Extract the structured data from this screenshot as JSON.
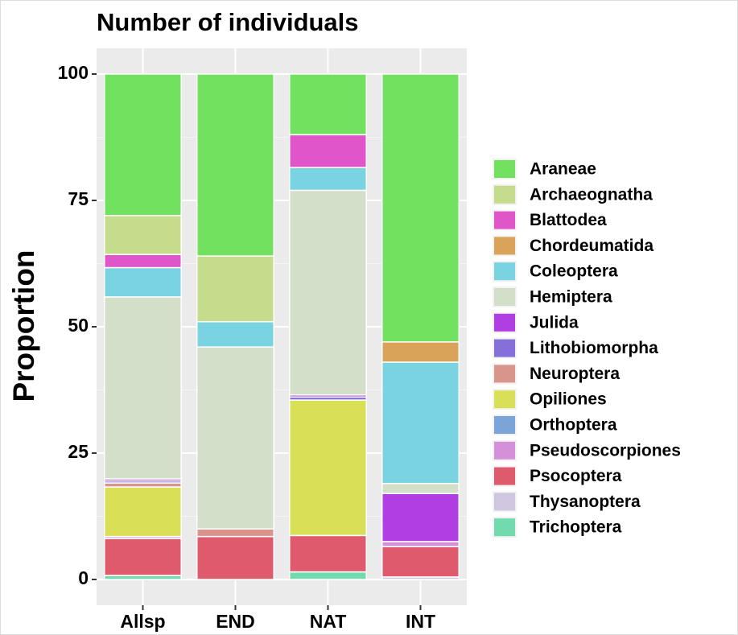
{
  "chart_data": {
    "type": "stacked_bar",
    "title": "Number of individuals",
    "y_label": "Proportion",
    "categories": [
      "Allsp",
      "END",
      "NAT",
      "INT"
    ],
    "ylim": [
      0,
      100
    ],
    "yticks": [
      0,
      25,
      50,
      75,
      100
    ],
    "grid": true,
    "legend_position": "right",
    "series": [
      {
        "name": "Araneae",
        "color": "#72e160",
        "values": [
          28,
          36,
          12,
          53
        ]
      },
      {
        "name": "Archaeognatha",
        "color": "#c4dc8c",
        "values": [
          7.7,
          13,
          0,
          0
        ]
      },
      {
        "name": "Blattodea",
        "color": "#e055c9",
        "values": [
          2.6,
          0,
          6.5,
          0
        ]
      },
      {
        "name": "Chordeumatida",
        "color": "#d9a45a",
        "values": [
          0,
          0,
          0,
          4
        ]
      },
      {
        "name": "Coleoptera",
        "color": "#79d3e0",
        "values": [
          5.8,
          5,
          4.5,
          24
        ]
      },
      {
        "name": "Hemiptera",
        "color": "#d3dfc8",
        "values": [
          36,
          36,
          40.5,
          2
        ]
      },
      {
        "name": "Julida",
        "color": "#b03ee3",
        "values": [
          0.4,
          0,
          0.4,
          9.5
        ]
      },
      {
        "name": "Lithobiomorpha",
        "color": "#8470d8",
        "values": [
          0.4,
          0,
          0.6,
          0
        ]
      },
      {
        "name": "Neuroptera",
        "color": "#d9958c",
        "values": [
          0.8,
          1.5,
          0,
          0
        ]
      },
      {
        "name": "Opiliones",
        "color": "#d9e055",
        "values": [
          9.8,
          0,
          26.8,
          0
        ]
      },
      {
        "name": "Orthoptera",
        "color": "#7ba4d9",
        "values": [
          0,
          0,
          0,
          0
        ]
      },
      {
        "name": "Pseudoscorpiones",
        "color": "#d490d9",
        "values": [
          0.4,
          0,
          0,
          1
        ]
      },
      {
        "name": "Psocoptera",
        "color": "#e05a6e",
        "values": [
          7.3,
          8.5,
          7.2,
          6
        ]
      },
      {
        "name": "Thysanoptera",
        "color": "#d0c8e0",
        "values": [
          0,
          0,
          0,
          0.5
        ]
      },
      {
        "name": "Trichoptera",
        "color": "#72dbae",
        "values": [
          0.8,
          0,
          1.5,
          0
        ]
      }
    ]
  }
}
